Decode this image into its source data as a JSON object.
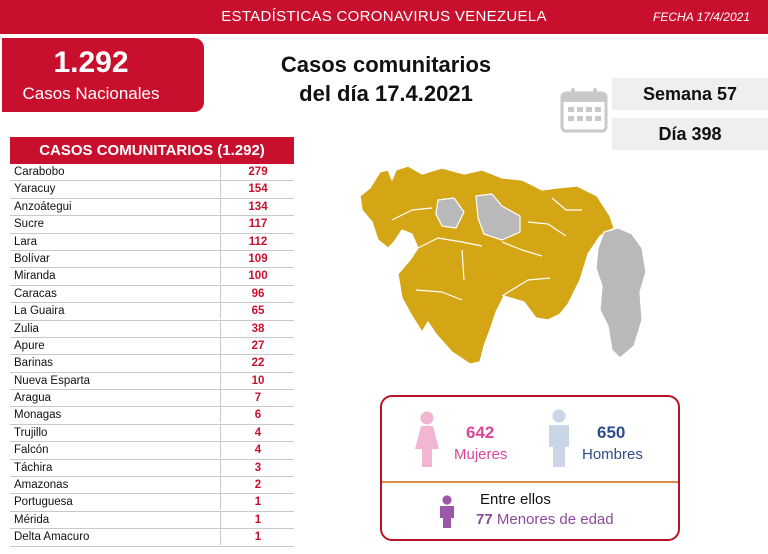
{
  "header": {
    "title": "ESTADÍSTICAS CORONAVIRUS VENEZUELA",
    "date": "FECHA 17/4/2021"
  },
  "national": {
    "total": "1.292",
    "label": "Casos Nacionales"
  },
  "headline": {
    "line1": "Casos comunitarios",
    "line2": "del día 17.4.2021"
  },
  "week": "Semana 57",
  "day": "Día 398",
  "table": {
    "title": "CASOS COMUNITARIOS (1.292)",
    "rows": [
      {
        "state": "Carabobo",
        "cases": "279"
      },
      {
        "state": "Yaracuy",
        "cases": "154"
      },
      {
        "state": "Anzoátegui",
        "cases": "134"
      },
      {
        "state": "Sucre",
        "cases": "117"
      },
      {
        "state": "Lara",
        "cases": "112"
      },
      {
        "state": "Bolívar",
        "cases": "109"
      },
      {
        "state": "Miranda",
        "cases": "100"
      },
      {
        "state": "Caracas",
        "cases": "96"
      },
      {
        "state": "La Guaira",
        "cases": "65"
      },
      {
        "state": "Zulia",
        "cases": "38"
      },
      {
        "state": "Apure",
        "cases": "27"
      },
      {
        "state": "Barinas",
        "cases": "22"
      },
      {
        "state": "Nueva Esparta",
        "cases": "10"
      },
      {
        "state": "Aragua",
        "cases": "7"
      },
      {
        "state": "Monagas",
        "cases": "6"
      },
      {
        "state": "Trujillo",
        "cases": "4"
      },
      {
        "state": "Falcón",
        "cases": "4"
      },
      {
        "state": "Táchira",
        "cases": "3"
      },
      {
        "state": "Amazonas",
        "cases": "2"
      },
      {
        "state": "Portuguesa",
        "cases": "1"
      },
      {
        "state": "Mérida",
        "cases": "1"
      },
      {
        "state": "Delta Amacuro",
        "cases": "1"
      }
    ]
  },
  "gender": {
    "women_count": "642",
    "women_label": "Mujeres",
    "men_count": "650",
    "men_label": "Hombres",
    "among_label": "Entre ellos",
    "minors_count": "77",
    "minors_label": "Menores de edad"
  },
  "colors": {
    "brand_red": "#c8102e",
    "map_affected": "#d4a514",
    "map_unaffected": "#b9b9b9",
    "women": "#d9479a",
    "men": "#2f4d8c",
    "minors": "#8b4a9c"
  }
}
